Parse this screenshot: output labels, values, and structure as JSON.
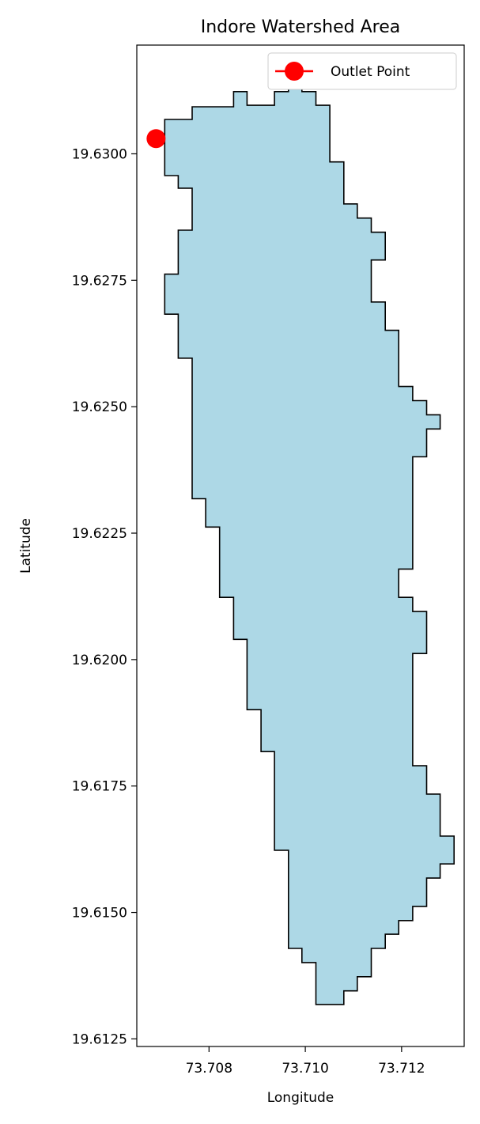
{
  "chart_data": {
    "type": "map",
    "title": "Indore Watershed Area",
    "xlabel": "Longitude",
    "ylabel": "Latitude",
    "xlim": [
      73.7065,
      73.7133
    ],
    "ylim": [
      19.61235,
      19.63215
    ],
    "x_ticks": [
      73.708,
      73.71,
      73.712
    ],
    "x_tick_labels": [
      "73.708",
      "73.710",
      "73.712"
    ],
    "y_ticks": [
      19.6125,
      19.615,
      19.6175,
      19.62,
      19.6225,
      19.625,
      19.6275,
      19.63
    ],
    "y_tick_labels": [
      "19.6125",
      "19.6150",
      "19.6175",
      "19.6200",
      "19.6225",
      "19.6250",
      "19.6275",
      "19.6300"
    ],
    "grid": false,
    "legend": {
      "position": "top-right",
      "entries": [
        "Outlet Point"
      ]
    },
    "series": [
      {
        "name": "Outlet Point",
        "kind": "point",
        "color": "#ff0000",
        "x": [
          73.7069
        ],
        "y": [
          19.6303
        ]
      },
      {
        "kind": "polygon",
        "fill": "#add8e6",
        "stroke": "#000000",
        "x": [
          73.70793,
          73.70793,
          73.70765,
          73.70765,
          73.70736,
          73.70736,
          73.70708,
          73.70708,
          73.70736,
          73.70736,
          73.70765,
          73.70765,
          73.70736,
          73.70736,
          73.70708,
          73.70708,
          73.70736,
          73.70736,
          73.70765,
          73.70765,
          73.70793,
          73.70793,
          73.70822,
          73.70822,
          73.70851,
          73.70851,
          73.70879,
          73.70879,
          73.70908,
          73.70908,
          73.70936,
          73.70936,
          73.70965,
          73.70965,
          73.70993,
          73.70993,
          73.71022,
          73.71022,
          73.7108,
          73.7108,
          73.71108,
          73.71108,
          73.71137,
          73.71137,
          73.71166,
          73.71166,
          73.71194,
          73.71194,
          73.71223,
          73.71223,
          73.71252,
          73.71252,
          73.7128,
          73.7128,
          73.71309,
          73.71309,
          73.7128,
          73.7128,
          73.71252,
          73.71252,
          73.71223,
          73.71223,
          73.71252,
          73.71252,
          73.71223,
          73.71223,
          73.71194,
          73.71194,
          73.71223,
          73.71223,
          73.71252,
          73.71252,
          73.7128,
          73.7128,
          73.71252,
          73.71252,
          73.71223,
          73.71223,
          73.71194,
          73.71194,
          73.71166,
          73.71166,
          73.71137,
          73.71137,
          73.71166,
          73.71166,
          73.71137,
          73.71137,
          73.71108,
          73.71108,
          73.7108,
          73.7108,
          73.71051,
          73.71051,
          73.71022,
          73.71022,
          73.70993,
          73.70993,
          73.70965,
          73.70965,
          73.70936,
          73.70936,
          73.70879,
          73.70879,
          73.70851,
          73.70851
        ],
        "y": [
          19.63093,
          19.63093,
          19.63093,
          19.63068,
          19.63068,
          19.63068,
          19.63068,
          19.62957,
          19.62957,
          19.62932,
          19.62932,
          19.62849,
          19.62849,
          19.62762,
          19.62762,
          19.62683,
          19.62683,
          19.62596,
          19.62596,
          19.62318,
          19.62318,
          19.62262,
          19.62262,
          19.62123,
          19.62123,
          19.6204,
          19.6204,
          19.61901,
          19.61901,
          19.61818,
          19.61818,
          19.61623,
          19.61623,
          19.61429,
          19.61429,
          19.61401,
          19.61401,
          19.61318,
          19.61318,
          19.61345,
          19.61345,
          19.61373,
          19.61373,
          19.61429,
          19.61429,
          19.61457,
          19.61457,
          19.61484,
          19.61484,
          19.61512,
          19.61512,
          19.61568,
          19.61568,
          19.61596,
          19.61596,
          19.61651,
          19.61651,
          19.61734,
          19.61734,
          19.6179,
          19.6179,
          19.62012,
          19.62012,
          19.62095,
          19.62095,
          19.62123,
          19.62123,
          19.62179,
          19.62179,
          19.62401,
          19.62401,
          19.62456,
          19.62456,
          19.62484,
          19.62484,
          19.62512,
          19.62512,
          19.6254,
          19.6254,
          19.62651,
          19.62651,
          19.62707,
          19.62707,
          19.6279,
          19.6279,
          19.62845,
          19.62845,
          19.62873,
          19.62873,
          19.62901,
          19.62901,
          19.62984,
          19.62984,
          19.63096,
          19.63096,
          19.63123,
          19.63123,
          19.63151,
          19.63151,
          19.63123,
          19.63123,
          19.63096,
          19.63096,
          19.63123,
          19.63123,
          19.63093
        ]
      }
    ]
  }
}
